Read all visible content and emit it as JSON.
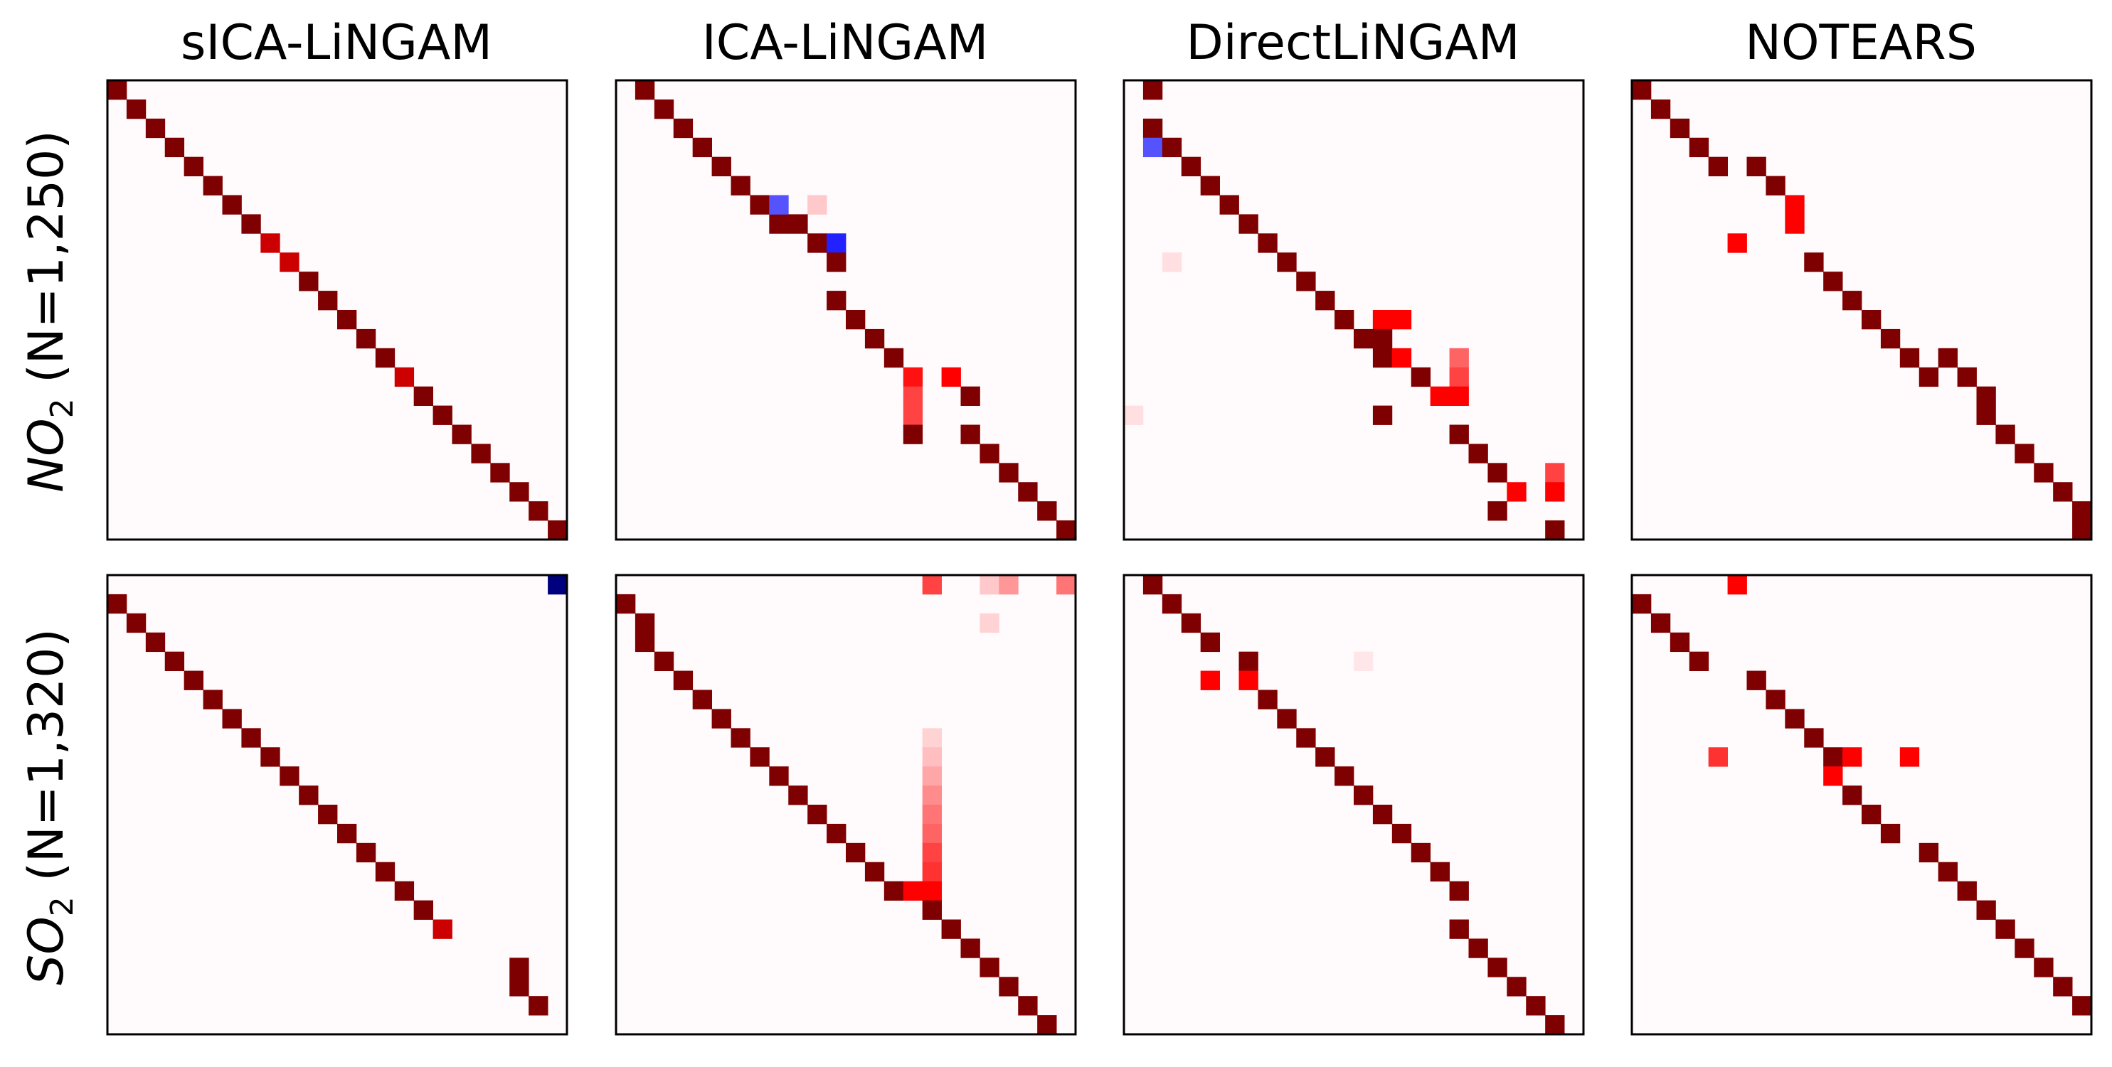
{
  "figure": {
    "columns": [
      "sICA-LiNGAM",
      "ICA-LiNGAM",
      "DirectLiNGAM",
      "NOTEARS"
    ],
    "rows": [
      {
        "chem": "NO",
        "sub": "2",
        "suffix": " (N=1,250)"
      },
      {
        "chem": "SO",
        "sub": "2",
        "suffix": " (N=1,320)"
      }
    ]
  },
  "chart_data": {
    "type": "heatmap",
    "matrix_size": 24,
    "colormap": "seismic",
    "color_scale": {
      "negative": "#00007f",
      "zero": "#fffafc",
      "positive": "#7f0000"
    },
    "grid": false,
    "ticks": false,
    "panels": [
      {
        "row": 0,
        "col": 0,
        "cells": [
          [
            0,
            0,
            1
          ],
          [
            1,
            1,
            1
          ],
          [
            2,
            2,
            1
          ],
          [
            3,
            3,
            1
          ],
          [
            4,
            4,
            1
          ],
          [
            5,
            5,
            1
          ],
          [
            6,
            6,
            1
          ],
          [
            7,
            7,
            1
          ],
          [
            8,
            8,
            0.85
          ],
          [
            9,
            9,
            0.85
          ],
          [
            10,
            10,
            1
          ],
          [
            11,
            11,
            1
          ],
          [
            12,
            12,
            1
          ],
          [
            13,
            13,
            1
          ],
          [
            14,
            14,
            1
          ],
          [
            15,
            15,
            0.85
          ],
          [
            16,
            16,
            1
          ],
          [
            17,
            17,
            1
          ],
          [
            18,
            18,
            1
          ],
          [
            19,
            19,
            1
          ],
          [
            20,
            20,
            1
          ],
          [
            21,
            21,
            1
          ],
          [
            22,
            22,
            1
          ],
          [
            23,
            23,
            1
          ]
        ]
      },
      {
        "row": 0,
        "col": 1,
        "cells": [
          [
            0,
            1,
            1
          ],
          [
            1,
            2,
            1
          ],
          [
            2,
            3,
            1
          ],
          [
            3,
            4,
            1
          ],
          [
            4,
            5,
            1
          ],
          [
            5,
            6,
            1
          ],
          [
            6,
            7,
            1
          ],
          [
            7,
            8,
            1
          ],
          [
            6,
            8,
            -0.5
          ],
          [
            6,
            10,
            0.15
          ],
          [
            7,
            9,
            1
          ],
          [
            8,
            10,
            1
          ],
          [
            8,
            11,
            -0.65
          ],
          [
            9,
            11,
            1
          ],
          [
            11,
            11,
            1
          ],
          [
            12,
            12,
            1
          ],
          [
            13,
            13,
            1
          ],
          [
            14,
            14,
            1
          ],
          [
            15,
            15,
            0.7
          ],
          [
            15,
            17,
            0.75
          ],
          [
            16,
            15,
            0.55
          ],
          [
            16,
            18,
            1
          ],
          [
            17,
            15,
            0.55
          ],
          [
            18,
            15,
            1
          ],
          [
            18,
            18,
            1
          ],
          [
            19,
            19,
            1
          ],
          [
            20,
            20,
            1
          ],
          [
            21,
            21,
            1
          ],
          [
            22,
            22,
            1
          ],
          [
            23,
            23,
            1
          ]
        ]
      },
      {
        "row": 0,
        "col": 2,
        "cells": [
          [
            0,
            1,
            1
          ],
          [
            2,
            1,
            1
          ],
          [
            3,
            1,
            -0.5
          ],
          [
            3,
            2,
            1
          ],
          [
            4,
            3,
            1
          ],
          [
            5,
            4,
            1
          ],
          [
            6,
            5,
            1
          ],
          [
            7,
            6,
            1
          ],
          [
            8,
            7,
            1
          ],
          [
            9,
            8,
            1
          ],
          [
            9,
            2,
            0.08
          ],
          [
            10,
            9,
            1
          ],
          [
            11,
            10,
            1
          ],
          [
            12,
            11,
            1
          ],
          [
            13,
            12,
            1
          ],
          [
            12,
            13,
            0.75
          ],
          [
            12,
            13,
            0.75
          ],
          [
            13,
            13,
            1
          ],
          [
            12,
            14,
            0.75
          ],
          [
            14,
            13,
            1
          ],
          [
            14,
            14,
            0.75
          ],
          [
            14,
            17,
            0.45
          ],
          [
            15,
            15,
            1
          ],
          [
            15,
            17,
            0.55
          ],
          [
            16,
            16,
            0.75
          ],
          [
            16,
            17,
            0.75
          ],
          [
            17,
            0,
            0.08
          ],
          [
            17,
            13,
            1
          ],
          [
            18,
            17,
            1
          ],
          [
            19,
            18,
            1
          ],
          [
            20,
            19,
            1
          ],
          [
            20,
            22,
            0.55
          ],
          [
            21,
            20,
            0.75
          ],
          [
            21,
            22,
            0.75
          ],
          [
            22,
            19,
            1
          ],
          [
            23,
            22,
            1
          ]
        ]
      },
      {
        "row": 0,
        "col": 3,
        "cells": [
          [
            0,
            0,
            1
          ],
          [
            1,
            1,
            1
          ],
          [
            2,
            2,
            1
          ],
          [
            3,
            3,
            1
          ],
          [
            4,
            4,
            1
          ],
          [
            4,
            6,
            1
          ],
          [
            5,
            7,
            1
          ],
          [
            6,
            8,
            0.75
          ],
          [
            7,
            8,
            0.75
          ],
          [
            8,
            5,
            0.75
          ],
          [
            9,
            9,
            1
          ],
          [
            10,
            10,
            1
          ],
          [
            11,
            11,
            1
          ],
          [
            12,
            12,
            1
          ],
          [
            13,
            13,
            1
          ],
          [
            14,
            14,
            1
          ],
          [
            15,
            15,
            1
          ],
          [
            14,
            16,
            1
          ],
          [
            15,
            17,
            1
          ],
          [
            16,
            18,
            1
          ],
          [
            17,
            18,
            1
          ],
          [
            18,
            19,
            1
          ],
          [
            19,
            20,
            1
          ],
          [
            20,
            21,
            1
          ],
          [
            21,
            22,
            1
          ],
          [
            22,
            23,
            1
          ],
          [
            23,
            23,
            1
          ]
        ]
      },
      {
        "row": 1,
        "col": 0,
        "cells": [
          [
            0,
            23,
            -1
          ],
          [
            1,
            0,
            1
          ],
          [
            2,
            1,
            1
          ],
          [
            3,
            2,
            1
          ],
          [
            4,
            3,
            1
          ],
          [
            5,
            4,
            1
          ],
          [
            6,
            5,
            1
          ],
          [
            7,
            6,
            1
          ],
          [
            8,
            7,
            1
          ],
          [
            9,
            8,
            1
          ],
          [
            10,
            9,
            1
          ],
          [
            11,
            10,
            1
          ],
          [
            12,
            11,
            1
          ],
          [
            13,
            12,
            1
          ],
          [
            14,
            13,
            1
          ],
          [
            15,
            14,
            1
          ],
          [
            16,
            15,
            1
          ],
          [
            17,
            16,
            1
          ],
          [
            18,
            17,
            0.85
          ],
          [
            20,
            21,
            1
          ],
          [
            21,
            21,
            1
          ],
          [
            22,
            22,
            1
          ]
        ]
      },
      {
        "row": 1,
        "col": 1,
        "cells": [
          [
            0,
            16,
            0.55
          ],
          [
            0,
            19,
            0.15
          ],
          [
            0,
            20,
            0.3
          ],
          [
            0,
            23,
            0.4
          ],
          [
            1,
            0,
            1
          ],
          [
            2,
            1,
            1
          ],
          [
            3,
            1,
            1
          ],
          [
            2,
            19,
            0.12
          ],
          [
            4,
            2,
            1
          ],
          [
            5,
            3,
            1
          ],
          [
            6,
            4,
            1
          ],
          [
            7,
            5,
            1
          ],
          [
            8,
            6,
            1
          ],
          [
            8,
            16,
            0.12
          ],
          [
            9,
            7,
            1
          ],
          [
            9,
            16,
            0.18
          ],
          [
            10,
            8,
            1
          ],
          [
            10,
            16,
            0.25
          ],
          [
            11,
            9,
            1
          ],
          [
            11,
            16,
            0.33
          ],
          [
            12,
            10,
            1
          ],
          [
            12,
            16,
            0.4
          ],
          [
            13,
            11,
            1
          ],
          [
            13,
            16,
            0.45
          ],
          [
            14,
            12,
            1
          ],
          [
            14,
            16,
            0.55
          ],
          [
            15,
            13,
            1
          ],
          [
            15,
            16,
            0.6
          ],
          [
            16,
            14,
            1
          ],
          [
            16,
            15,
            0.75
          ],
          [
            16,
            16,
            0.75
          ],
          [
            17,
            16,
            1
          ],
          [
            18,
            17,
            1
          ],
          [
            19,
            18,
            1
          ],
          [
            20,
            19,
            1
          ],
          [
            21,
            20,
            1
          ],
          [
            22,
            21,
            1
          ],
          [
            23,
            22,
            1
          ]
        ]
      },
      {
        "row": 1,
        "col": 2,
        "cells": [
          [
            0,
            1,
            1
          ],
          [
            1,
            2,
            1
          ],
          [
            2,
            3,
            1
          ],
          [
            3,
            4,
            1
          ],
          [
            4,
            6,
            1
          ],
          [
            5,
            4,
            0.75
          ],
          [
            5,
            6,
            0.75
          ],
          [
            4,
            12,
            0.06
          ],
          [
            6,
            7,
            1
          ],
          [
            7,
            8,
            1
          ],
          [
            8,
            9,
            1
          ],
          [
            9,
            10,
            1
          ],
          [
            10,
            11,
            1
          ],
          [
            11,
            12,
            1
          ],
          [
            12,
            13,
            1
          ],
          [
            13,
            14,
            1
          ],
          [
            14,
            15,
            1
          ],
          [
            15,
            16,
            1
          ],
          [
            16,
            17,
            1
          ],
          [
            18,
            17,
            1
          ],
          [
            19,
            18,
            1
          ],
          [
            20,
            19,
            1
          ],
          [
            21,
            20,
            1
          ],
          [
            22,
            21,
            1
          ],
          [
            23,
            22,
            1
          ]
        ]
      },
      {
        "row": 1,
        "col": 3,
        "cells": [
          [
            0,
            5,
            0.75
          ],
          [
            1,
            0,
            1
          ],
          [
            2,
            1,
            1
          ],
          [
            3,
            2,
            1
          ],
          [
            4,
            3,
            1
          ],
          [
            5,
            6,
            1
          ],
          [
            6,
            7,
            1
          ],
          [
            7,
            8,
            1
          ],
          [
            8,
            9,
            1
          ],
          [
            9,
            10,
            1
          ],
          [
            9,
            4,
            0.6
          ],
          [
            9,
            11,
            0.75
          ],
          [
            9,
            14,
            0.75
          ],
          [
            10,
            10,
            0.75
          ],
          [
            11,
            11,
            1
          ],
          [
            12,
            12,
            1
          ],
          [
            13,
            13,
            1
          ],
          [
            14,
            15,
            1
          ],
          [
            15,
            16,
            1
          ],
          [
            16,
            17,
            1
          ],
          [
            17,
            18,
            1
          ],
          [
            18,
            19,
            1
          ],
          [
            19,
            20,
            1
          ],
          [
            20,
            21,
            1
          ],
          [
            21,
            22,
            1
          ],
          [
            22,
            23,
            1
          ]
        ]
      }
    ]
  }
}
